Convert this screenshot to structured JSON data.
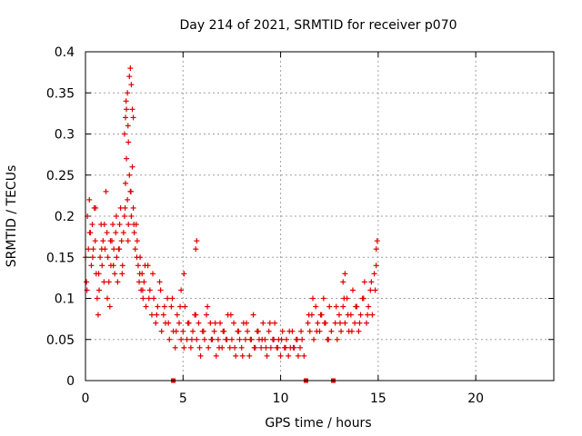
{
  "chart_data": {
    "type": "scatter",
    "title": "Day 214 of 2021, SRMTID for receiver p070",
    "xlabel": "GPS time / hours",
    "ylabel": "SRMTID / TECUs",
    "xlim": [
      0,
      24
    ],
    "ylim": [
      0,
      0.4
    ],
    "xticks": [
      0,
      5,
      10,
      15,
      20
    ],
    "xtick_labels": [
      "0",
      "5",
      "10",
      "15",
      "20"
    ],
    "yticks": [
      0,
      0.05,
      0.1,
      0.15,
      0.2,
      0.25,
      0.3,
      0.35,
      0.4
    ],
    "ytick_labels": [
      "0",
      "0.05",
      "0.1",
      "0.15",
      "0.2",
      "0.25",
      "0.3",
      "0.35",
      "0.4"
    ],
    "grid": true,
    "marker": "+",
    "color": "#e00000",
    "gap_markers_x": [
      4.5,
      11.3,
      12.7
    ],
    "series": [
      {
        "name": "SRMTID",
        "x": [
          0.0,
          0.05,
          0.1,
          0.15,
          0.2,
          0.25,
          0.3,
          0.35,
          0.4,
          0.45,
          0.5,
          0.55,
          0.6,
          0.65,
          0.7,
          0.75,
          0.8,
          0.85,
          0.9,
          0.95,
          1.0,
          1.05,
          1.1,
          1.15,
          1.2,
          1.25,
          1.3,
          1.35,
          1.4,
          1.45,
          1.5,
          1.55,
          1.6,
          1.65,
          1.7,
          1.75,
          1.8,
          1.85,
          1.9,
          1.95,
          2.0,
          2.05,
          2.1,
          2.15,
          2.2,
          2.25,
          2.3,
          2.35,
          2.4,
          2.45,
          2.5,
          2.55,
          2.6,
          2.65,
          2.7,
          2.75,
          2.8,
          2.85,
          2.9,
          2.95,
          3.0,
          3.1,
          3.2,
          3.3,
          3.4,
          3.5,
          3.6,
          3.7,
          3.8,
          3.9,
          4.0,
          4.1,
          4.2,
          4.3,
          4.4,
          4.5,
          4.6,
          4.7,
          4.8,
          4.9,
          5.0,
          5.1,
          5.2,
          5.3,
          5.4,
          5.5,
          5.6,
          5.7,
          5.8,
          5.9,
          6.0,
          6.1,
          6.2,
          6.3,
          6.4,
          6.5,
          6.6,
          6.7,
          6.8,
          6.9,
          7.0,
          7.1,
          7.2,
          7.3,
          7.4,
          7.5,
          7.6,
          7.7,
          7.8,
          7.9,
          8.0,
          8.1,
          8.2,
          8.3,
          8.4,
          8.5,
          8.6,
          8.7,
          8.8,
          8.9,
          9.0,
          9.1,
          9.2,
          9.3,
          9.4,
          9.5,
          9.6,
          9.7,
          9.8,
          9.9,
          10.0,
          10.1,
          10.2,
          10.3,
          10.4,
          10.5,
          10.6,
          10.7,
          10.8,
          10.9,
          11.0,
          11.1,
          11.2,
          11.4,
          11.5,
          11.6,
          11.7,
          11.8,
          11.9,
          12.0,
          12.1,
          12.2,
          12.3,
          12.4,
          12.5,
          12.6,
          12.8,
          12.9,
          13.0,
          13.1,
          13.2,
          13.3,
          13.4,
          13.5,
          13.6,
          13.7,
          13.8,
          13.9,
          14.0,
          14.1,
          14.2,
          14.3,
          14.4,
          14.5,
          14.6,
          14.7,
          14.8,
          14.9,
          0.08,
          0.22,
          0.37,
          0.52,
          0.68,
          0.83,
          0.97,
          1.12,
          1.28,
          1.43,
          1.58,
          1.73,
          1.88,
          2.03,
          2.18,
          2.33,
          2.48,
          2.63,
          2.78,
          2.93,
          3.05,
          3.25,
          3.45,
          3.65,
          3.85,
          4.05,
          4.25,
          4.45,
          4.65,
          4.85,
          5.05,
          5.25,
          5.45,
          5.65,
          5.85,
          6.05,
          6.25,
          6.45,
          6.65,
          6.85,
          7.05,
          7.25,
          7.45,
          7.65,
          7.85,
          8.05,
          8.25,
          8.45,
          8.65,
          8.85,
          9.05,
          9.25,
          9.45,
          9.65,
          9.85,
          10.05,
          10.25,
          10.45,
          10.65,
          10.85,
          11.05,
          11.45,
          11.65,
          11.85,
          12.05,
          12.25,
          12.45,
          12.85,
          13.05,
          13.25,
          13.45,
          13.65,
          13.85,
          14.05,
          14.25,
          14.45,
          14.65,
          14.85,
          2.0,
          2.05,
          2.08,
          2.1,
          2.15,
          2.18,
          2.2,
          2.25,
          2.3,
          2.35,
          2.4,
          2.45,
          5.65,
          5.7,
          5.05,
          4.9,
          13.2,
          13.3,
          14.9,
          14.95
        ],
        "y": [
          0.15,
          0.12,
          0.2,
          0.16,
          0.22,
          0.18,
          0.14,
          0.19,
          0.16,
          0.21,
          0.17,
          0.13,
          0.1,
          0.08,
          0.11,
          0.15,
          0.19,
          0.14,
          0.17,
          0.12,
          0.16,
          0.23,
          0.18,
          0.15,
          0.12,
          0.09,
          0.14,
          0.17,
          0.19,
          0.16,
          0.13,
          0.18,
          0.15,
          0.12,
          0.16,
          0.19,
          0.21,
          0.17,
          0.14,
          0.18,
          0.2,
          0.24,
          0.27,
          0.22,
          0.19,
          0.25,
          0.23,
          0.2,
          0.26,
          0.21,
          0.18,
          0.16,
          0.19,
          0.17,
          0.14,
          0.12,
          0.15,
          0.11,
          0.13,
          0.1,
          0.12,
          0.09,
          0.14,
          0.11,
          0.08,
          0.1,
          0.07,
          0.09,
          0.12,
          0.06,
          0.08,
          0.07,
          0.1,
          0.05,
          0.09,
          0.06,
          0.04,
          0.08,
          0.07,
          0.05,
          0.06,
          0.09,
          0.05,
          0.07,
          0.04,
          0.06,
          0.08,
          0.05,
          0.07,
          0.03,
          0.06,
          0.05,
          0.08,
          0.04,
          0.07,
          0.05,
          0.06,
          0.03,
          0.05,
          0.07,
          0.04,
          0.06,
          0.05,
          0.08,
          0.04,
          0.05,
          0.07,
          0.03,
          0.06,
          0.05,
          0.04,
          0.07,
          0.05,
          0.06,
          0.03,
          0.05,
          0.08,
          0.04,
          0.06,
          0.05,
          0.04,
          0.07,
          0.05,
          0.03,
          0.06,
          0.04,
          0.05,
          0.07,
          0.04,
          0.05,
          0.03,
          0.06,
          0.04,
          0.05,
          0.03,
          0.04,
          0.06,
          0.04,
          0.05,
          0.03,
          0.04,
          0.05,
          0.03,
          0.07,
          0.06,
          0.08,
          0.05,
          0.09,
          0.07,
          0.06,
          0.08,
          0.1,
          0.07,
          0.05,
          0.09,
          0.06,
          0.07,
          0.05,
          0.08,
          0.06,
          0.09,
          0.07,
          0.1,
          0.06,
          0.08,
          0.11,
          0.07,
          0.09,
          0.06,
          0.08,
          0.1,
          0.12,
          0.07,
          0.09,
          0.11,
          0.08,
          0.13,
          0.14,
          0.11,
          0.18,
          0.15,
          0.21,
          0.13,
          0.16,
          0.19,
          0.1,
          0.17,
          0.14,
          0.2,
          0.16,
          0.13,
          0.21,
          0.17,
          0.23,
          0.19,
          0.15,
          0.13,
          0.11,
          0.14,
          0.1,
          0.13,
          0.08,
          0.11,
          0.09,
          0.07,
          0.1,
          0.06,
          0.09,
          0.04,
          0.07,
          0.05,
          0.08,
          0.04,
          0.06,
          0.09,
          0.05,
          0.07,
          0.04,
          0.06,
          0.05,
          0.08,
          0.04,
          0.06,
          0.03,
          0.07,
          0.05,
          0.04,
          0.06,
          0.05,
          0.04,
          0.07,
          0.05,
          0.04,
          0.05,
          0.04,
          0.06,
          0.04,
          0.05,
          0.06,
          0.08,
          0.1,
          0.06,
          0.08,
          0.07,
          0.05,
          0.09,
          0.07,
          0.1,
          0.08,
          0.06,
          0.09,
          0.07,
          0.1,
          0.08,
          0.12,
          0.11,
          0.3,
          0.32,
          0.34,
          0.33,
          0.35,
          0.31,
          0.29,
          0.37,
          0.38,
          0.36,
          0.33,
          0.32,
          0.16,
          0.17,
          0.13,
          0.11,
          0.12,
          0.13,
          0.16,
          0.17
        ]
      }
    ]
  }
}
